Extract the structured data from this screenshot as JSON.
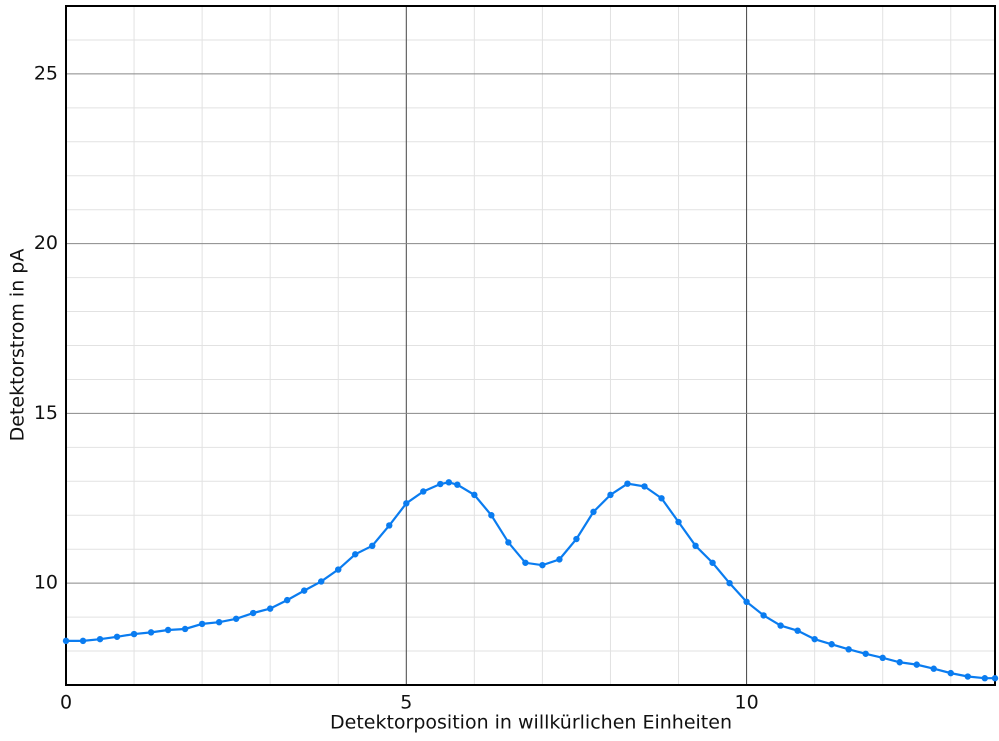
{
  "chart_data": {
    "type": "line",
    "xlabel": "Detektorposition in willkürlichen Einheiten",
    "ylabel": "Detektorstrom in pA",
    "xlim": [
      0,
      13.65
    ],
    "ylim": [
      7,
      27
    ],
    "xticks": [
      0,
      5,
      10
    ],
    "yticks": [
      10,
      15,
      20,
      25
    ],
    "minor_xticks": [
      1,
      2,
      3,
      4,
      6,
      7,
      8,
      9,
      11,
      12,
      13
    ],
    "minor_yticks": [
      8,
      9,
      11,
      12,
      13,
      14,
      16,
      17,
      18,
      19,
      21,
      22,
      23,
      24,
      26
    ],
    "grid": true,
    "series": [
      {
        "color": "#0a7cf0",
        "x": [
          0,
          0.25,
          0.5,
          0.75,
          1.0,
          1.25,
          1.5,
          1.75,
          2.0,
          2.25,
          2.5,
          2.75,
          3.0,
          3.25,
          3.5,
          3.75,
          4.0,
          4.25,
          4.5,
          4.75,
          5.0,
          5.25,
          5.5,
          5.625,
          5.75,
          6.0,
          6.25,
          6.5,
          6.75,
          7.0,
          7.25,
          7.5,
          7.75,
          8.0,
          8.25,
          8.5,
          8.75,
          9.0,
          9.25,
          9.5,
          9.75,
          10.0,
          10.25,
          10.5,
          10.75,
          11.0,
          11.25,
          11.5,
          11.75,
          12.0,
          12.25,
          12.5,
          12.75,
          13.0,
          13.25,
          13.5,
          13.65
        ],
        "values": [
          8.3,
          8.3,
          8.35,
          8.42,
          8.5,
          8.55,
          8.62,
          8.65,
          8.8,
          8.85,
          8.95,
          9.12,
          9.25,
          9.5,
          9.78,
          10.05,
          10.4,
          10.85,
          11.1,
          11.7,
          12.35,
          12.7,
          12.92,
          12.97,
          12.9,
          12.6,
          12.0,
          11.2,
          10.6,
          10.53,
          10.7,
          11.3,
          12.1,
          12.6,
          12.93,
          12.85,
          12.5,
          11.8,
          11.1,
          10.6,
          10.0,
          9.45,
          9.05,
          8.75,
          8.6,
          8.35,
          8.2,
          8.05,
          7.92,
          7.8,
          7.67,
          7.6,
          7.48,
          7.35,
          7.25,
          7.2,
          7.2
        ]
      }
    ]
  }
}
